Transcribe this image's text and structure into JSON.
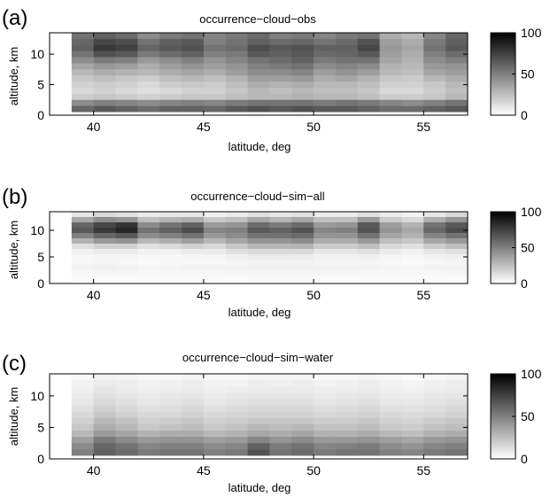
{
  "figure": {
    "colorbar_ticks": [
      "0",
      "50",
      "100"
    ],
    "colorbar_range": [
      0,
      100
    ],
    "colorbar_colors": {
      "low": "#ffffff",
      "high": "#000000"
    }
  },
  "chart_data": [
    {
      "type": "heatmap",
      "panel_label": "(a)",
      "title": "occurrence−cloud−obs",
      "xlabel": "latitude, deg",
      "ylabel": "altitude, km",
      "xlim": [
        38,
        57
      ],
      "ylim": [
        0,
        13.5
      ],
      "xticks": [
        "40",
        "45",
        "50",
        "55"
      ],
      "yticks": [
        "0",
        "5",
        "10"
      ],
      "x_columns": [
        38.5,
        39.5,
        40.5,
        41.5,
        42.5,
        43.5,
        44.5,
        45.5,
        46.5,
        47.5,
        48.5,
        49.5,
        50.5,
        51.5,
        52.5,
        53.5,
        54.5,
        55.5,
        56.5
      ],
      "altitude_rows_km": [
        13,
        12,
        11,
        10,
        9,
        8,
        7,
        6,
        5,
        4,
        3,
        2,
        1
      ],
      "values": [
        [
          0,
          55,
          62,
          58,
          45,
          52,
          55,
          48,
          52,
          58,
          50,
          52,
          48,
          52,
          55,
          32,
          28,
          48,
          60
        ],
        [
          0,
          60,
          72,
          70,
          55,
          62,
          65,
          50,
          55,
          62,
          58,
          60,
          55,
          58,
          68,
          38,
          32,
          52,
          62
        ],
        [
          0,
          62,
          78,
          75,
          60,
          65,
          68,
          55,
          58,
          70,
          65,
          68,
          62,
          62,
          72,
          40,
          35,
          55,
          65
        ],
        [
          0,
          55,
          68,
          65,
          52,
          58,
          62,
          50,
          52,
          65,
          62,
          65,
          58,
          60,
          65,
          38,
          32,
          50,
          58
        ],
        [
          0,
          45,
          52,
          50,
          40,
          45,
          50,
          42,
          48,
          55,
          58,
          62,
          52,
          55,
          55,
          35,
          30,
          45,
          50
        ],
        [
          0,
          35,
          40,
          38,
          32,
          38,
          42,
          38,
          42,
          50,
          52,
          55,
          45,
          48,
          45,
          30,
          28,
          40,
          42
        ],
        [
          0,
          28,
          32,
          30,
          28,
          32,
          35,
          32,
          38,
          45,
          45,
          48,
          38,
          42,
          38,
          28,
          25,
          35,
          38
        ],
        [
          0,
          22,
          25,
          22,
          20,
          25,
          28,
          25,
          30,
          38,
          38,
          40,
          32,
          35,
          30,
          22,
          20,
          28,
          32
        ],
        [
          0,
          18,
          20,
          18,
          15,
          20,
          22,
          20,
          25,
          32,
          30,
          32,
          28,
          28,
          25,
          18,
          18,
          22,
          28
        ],
        [
          0,
          15,
          18,
          15,
          12,
          15,
          18,
          18,
          22,
          28,
          25,
          28,
          25,
          25,
          22,
          15,
          15,
          20,
          25
        ],
        [
          0,
          20,
          22,
          20,
          18,
          20,
          22,
          22,
          25,
          28,
          28,
          30,
          28,
          28,
          25,
          20,
          20,
          22,
          28
        ],
        [
          0,
          45,
          50,
          48,
          45,
          48,
          50,
          48,
          52,
          55,
          55,
          55,
          52,
          55,
          52,
          48,
          45,
          50,
          55
        ],
        [
          0,
          60,
          65,
          62,
          58,
          62,
          62,
          60,
          65,
          68,
          65,
          68,
          65,
          65,
          62,
          58,
          58,
          62,
          65
        ]
      ]
    },
    {
      "type": "heatmap",
      "panel_label": "(b)",
      "title": "occurrence−cloud−sim−all",
      "xlabel": "latitude, deg",
      "ylabel": "altitude, km",
      "xlim": [
        38,
        57
      ],
      "ylim": [
        0,
        13.5
      ],
      "xticks": [
        "40",
        "45",
        "50",
        "55"
      ],
      "yticks": [
        "0",
        "5",
        "10"
      ],
      "x_columns": [
        38.5,
        39.5,
        40.5,
        41.5,
        42.5,
        43.5,
        44.5,
        45.5,
        46.5,
        47.5,
        48.5,
        49.5,
        50.5,
        51.5,
        52.5,
        53.5,
        54.5,
        55.5,
        56.5
      ],
      "altitude_rows_km": [
        13,
        12,
        11,
        10,
        9,
        8,
        7,
        6,
        5,
        4,
        3,
        2,
        1
      ],
      "values": [
        [
          0,
          10,
          15,
          12,
          8,
          10,
          10,
          6,
          8,
          12,
          10,
          12,
          8,
          8,
          12,
          8,
          5,
          10,
          15
        ],
        [
          0,
          35,
          45,
          42,
          25,
          30,
          32,
          22,
          25,
          35,
          30,
          35,
          25,
          25,
          40,
          20,
          15,
          32,
          42
        ],
        [
          0,
          60,
          72,
          80,
          45,
          55,
          62,
          40,
          42,
          58,
          52,
          58,
          40,
          42,
          65,
          38,
          30,
          55,
          65
        ],
        [
          0,
          65,
          78,
          85,
          55,
          62,
          70,
          48,
          50,
          65,
          62,
          68,
          48,
          50,
          68,
          42,
          35,
          60,
          70
        ],
        [
          0,
          50,
          60,
          65,
          45,
          50,
          55,
          40,
          45,
          55,
          55,
          58,
          42,
          42,
          55,
          35,
          30,
          48,
          55
        ],
        [
          0,
          30,
          40,
          42,
          28,
          32,
          38,
          28,
          35,
          42,
          42,
          45,
          32,
          32,
          40,
          25,
          22,
          35,
          40
        ],
        [
          0,
          12,
          18,
          18,
          12,
          15,
          18,
          15,
          22,
          28,
          28,
          30,
          20,
          20,
          25,
          15,
          12,
          20,
          25
        ],
        [
          0,
          5,
          8,
          8,
          5,
          6,
          8,
          8,
          12,
          15,
          15,
          15,
          10,
          10,
          12,
          8,
          6,
          10,
          12
        ],
        [
          0,
          3,
          4,
          4,
          3,
          3,
          4,
          4,
          6,
          8,
          8,
          8,
          5,
          5,
          6,
          4,
          3,
          5,
          6
        ],
        [
          0,
          3,
          4,
          3,
          2,
          3,
          3,
          3,
          4,
          5,
          5,
          5,
          4,
          4,
          4,
          3,
          2,
          3,
          4
        ],
        [
          0,
          5,
          6,
          5,
          4,
          4,
          5,
          5,
          5,
          6,
          6,
          6,
          5,
          5,
          5,
          4,
          4,
          5,
          5
        ],
        [
          0,
          3,
          4,
          4,
          3,
          3,
          3,
          3,
          4,
          4,
          4,
          4,
          4,
          4,
          3,
          3,
          3,
          3,
          4
        ],
        [
          0,
          2,
          2,
          2,
          2,
          2,
          2,
          2,
          2,
          3,
          3,
          3,
          2,
          2,
          2,
          2,
          2,
          2,
          2
        ]
      ]
    },
    {
      "type": "heatmap",
      "panel_label": "(c)",
      "title": "occurrence−cloud−sim−water",
      "xlabel": "latitude, deg",
      "ylabel": "altitude, km",
      "xlim": [
        38,
        57
      ],
      "ylim": [
        0,
        13.5
      ],
      "xticks": [
        "40",
        "45",
        "50",
        "55"
      ],
      "yticks": [
        "0",
        "5",
        "10"
      ],
      "x_columns": [
        38.5,
        39.5,
        40.5,
        41.5,
        42.5,
        43.5,
        44.5,
        45.5,
        46.5,
        47.5,
        48.5,
        49.5,
        50.5,
        51.5,
        52.5,
        53.5,
        54.5,
        55.5,
        56.5
      ],
      "altitude_rows_km": [
        13,
        12,
        11,
        10,
        9,
        8,
        7,
        6,
        5,
        4,
        3,
        2,
        1
      ],
      "values": [
        [
          0,
          3,
          5,
          4,
          3,
          3,
          4,
          3,
          3,
          4,
          4,
          4,
          3,
          3,
          4,
          3,
          2,
          3,
          4
        ],
        [
          0,
          5,
          8,
          7,
          5,
          6,
          7,
          5,
          5,
          7,
          6,
          7,
          5,
          6,
          7,
          5,
          4,
          6,
          7
        ],
        [
          0,
          6,
          10,
          8,
          6,
          7,
          8,
          6,
          7,
          8,
          8,
          8,
          7,
          7,
          8,
          6,
          5,
          7,
          8
        ],
        [
          0,
          8,
          12,
          10,
          8,
          9,
          10,
          8,
          9,
          10,
          10,
          10,
          8,
          9,
          10,
          8,
          7,
          9,
          10
        ],
        [
          0,
          10,
          15,
          12,
          10,
          11,
          12,
          10,
          11,
          12,
          12,
          12,
          10,
          11,
          12,
          10,
          9,
          11,
          12
        ],
        [
          0,
          12,
          18,
          15,
          12,
          13,
          15,
          12,
          14,
          15,
          15,
          15,
          13,
          14,
          15,
          12,
          11,
          13,
          15
        ],
        [
          0,
          15,
          22,
          18,
          15,
          16,
          18,
          15,
          17,
          18,
          18,
          18,
          16,
          17,
          18,
          15,
          14,
          16,
          18
        ],
        [
          0,
          18,
          28,
          24,
          18,
          20,
          22,
          18,
          20,
          22,
          22,
          22,
          20,
          20,
          22,
          18,
          17,
          20,
          22
        ],
        [
          0,
          22,
          32,
          28,
          22,
          24,
          26,
          22,
          24,
          28,
          26,
          28,
          24,
          24,
          26,
          22,
          20,
          24,
          26
        ],
        [
          0,
          28,
          40,
          35,
          30,
          32,
          32,
          28,
          30,
          35,
          32,
          35,
          30,
          30,
          32,
          28,
          25,
          30,
          32
        ],
        [
          0,
          38,
          52,
          45,
          40,
          42,
          42,
          38,
          40,
          48,
          42,
          45,
          40,
          40,
          42,
          38,
          35,
          40,
          42
        ],
        [
          0,
          45,
          60,
          55,
          48,
          50,
          50,
          45,
          48,
          62,
          52,
          55,
          48,
          50,
          52,
          45,
          42,
          48,
          50
        ],
        [
          0,
          50,
          62,
          58,
          52,
          55,
          55,
          50,
          52,
          68,
          55,
          58,
          52,
          55,
          55,
          50,
          48,
          52,
          55
        ]
      ]
    }
  ]
}
